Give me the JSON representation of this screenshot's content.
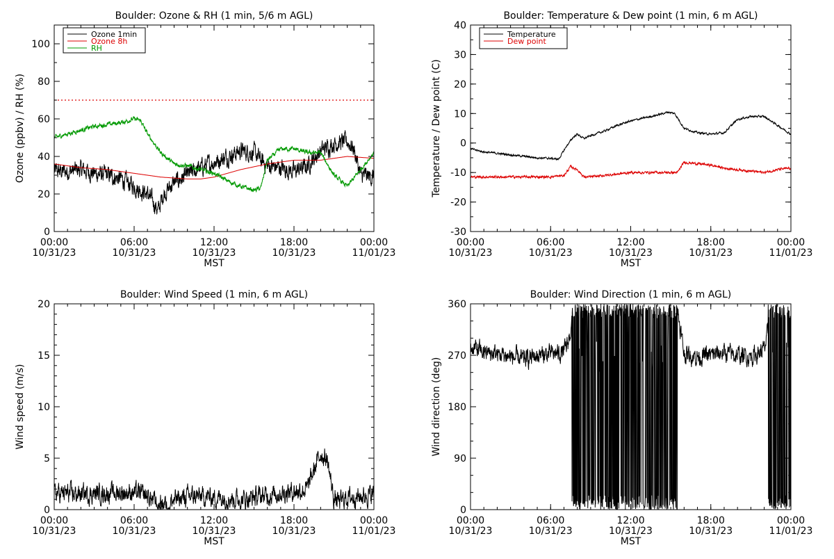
{
  "chart_data": [
    {
      "type": "line",
      "title": "Boulder: Ozone & RH (1 min, 5/6 m AGL)",
      "xlabel": "MST",
      "ylabel": "Ozone (ppbv) / RH (%)",
      "x_ticks": [
        {
          "time": "00:00",
          "date": "10/31/23"
        },
        {
          "time": "06:00",
          "date": "10/31/23"
        },
        {
          "time": "12:00",
          "date": "10/31/23"
        },
        {
          "time": "18:00",
          "date": "10/31/23"
        },
        {
          "time": "00:00",
          "date": "11/01/23"
        }
      ],
      "xlim_hours": [
        0,
        24
      ],
      "ylim": [
        0,
        110
      ],
      "yticks": [
        0,
        20,
        40,
        60,
        80,
        100
      ],
      "legend_position": "top-left",
      "reference_line": {
        "y": 70,
        "color": "#dd0000",
        "style": "dotted"
      },
      "series": [
        {
          "name": "Ozone 1min",
          "color": "#000000",
          "noise": 3.5,
          "hours": [
            0,
            1,
            2,
            3,
            4,
            5,
            6,
            6.5,
            7,
            7.5,
            7.8,
            8.2,
            9,
            10,
            11,
            12,
            13,
            14,
            15,
            15.5,
            16,
            17,
            18,
            19,
            20,
            21,
            22,
            22.5,
            23,
            24
          ],
          "values": [
            32,
            32,
            33,
            31,
            30,
            28,
            24,
            22,
            20,
            15,
            11,
            20,
            26,
            30,
            34,
            37,
            40,
            43,
            42,
            38,
            35,
            34,
            32,
            35,
            43,
            47,
            48,
            44,
            30,
            29
          ]
        },
        {
          "name": "Ozone 8h",
          "color": "#dd0000",
          "noise": 0,
          "hours": [
            0,
            2,
            4,
            6,
            8,
            10,
            11,
            12,
            14,
            16,
            18,
            20,
            22,
            24
          ],
          "values": [
            36,
            34,
            33,
            31,
            29,
            28,
            28,
            29,
            33,
            36,
            38,
            38,
            40,
            39
          ]
        },
        {
          "name": "RH",
          "color": "#009900",
          "noise": 0.9,
          "hours": [
            0,
            1,
            2,
            3,
            4,
            5,
            6,
            6.5,
            7,
            8,
            9,
            10,
            12,
            13,
            14,
            15,
            15.5,
            16,
            17,
            18,
            19,
            20,
            21,
            22,
            23,
            24
          ],
          "values": [
            50,
            52,
            54,
            56,
            57,
            58,
            60,
            59,
            52,
            42,
            36,
            35,
            31,
            27,
            24,
            22,
            23,
            38,
            44,
            44,
            42,
            42,
            30,
            24,
            33,
            42
          ]
        }
      ]
    },
    {
      "type": "line",
      "title": "Boulder: Temperature & Dew point (1 min, 6 m AGL)",
      "xlabel": "MST",
      "ylabel": "Temperature / Dew point (C)",
      "x_ticks": [
        {
          "time": "00:00",
          "date": "10/31/23"
        },
        {
          "time": "06:00",
          "date": "10/31/23"
        },
        {
          "time": "12:00",
          "date": "10/31/23"
        },
        {
          "time": "18:00",
          "date": "10/31/23"
        },
        {
          "time": "00:00",
          "date": "11/01/23"
        }
      ],
      "xlim_hours": [
        0,
        24
      ],
      "ylim": [
        -30,
        40
      ],
      "yticks": [
        -30,
        -20,
        -10,
        0,
        10,
        20,
        30,
        40
      ],
      "legend_position": "top-left",
      "series": [
        {
          "name": "Temperature",
          "color": "#000000",
          "noise": 0.25,
          "hours": [
            0,
            1,
            2,
            3,
            4,
            5,
            6,
            6.6,
            7.2,
            7.7,
            8,
            8.5,
            9,
            10,
            11,
            12,
            13,
            14,
            14.8,
            15.3,
            16,
            17,
            18,
            19,
            20,
            21,
            22,
            23,
            24
          ],
          "values": [
            -2,
            -3,
            -3.5,
            -4,
            -4.5,
            -5,
            -5.2,
            -5.5,
            -1,
            2,
            3,
            1.5,
            2.5,
            4,
            6,
            7.5,
            8.5,
            9.5,
            10.5,
            10,
            5,
            3.5,
            3,
            3.5,
            8,
            9,
            9,
            6,
            3
          ]
        },
        {
          "name": "Dew point",
          "color": "#dd0000",
          "noise": 0.3,
          "hours": [
            0,
            1,
            2,
            3,
            4,
            5,
            6,
            7,
            7.5,
            8,
            8.5,
            9,
            10,
            11,
            12,
            13,
            14,
            15,
            15.5,
            16,
            17,
            18,
            19,
            20,
            21,
            22,
            23,
            24
          ],
          "values": [
            -11.5,
            -11.5,
            -11.5,
            -11.5,
            -11.5,
            -11.5,
            -11.5,
            -11,
            -8,
            -9,
            -11.5,
            -11.5,
            -11,
            -10.5,
            -10,
            -10,
            -10,
            -10,
            -10,
            -6.5,
            -7,
            -7.5,
            -8.5,
            -9,
            -9.5,
            -10,
            -9,
            -8.5
          ]
        }
      ]
    },
    {
      "type": "line",
      "title": "Boulder: Wind Speed (1 min, 6 m AGL)",
      "xlabel": "MST",
      "ylabel": "Wind speed (m/s)",
      "x_ticks": [
        {
          "time": "00:00",
          "date": "10/31/23"
        },
        {
          "time": "06:00",
          "date": "10/31/23"
        },
        {
          "time": "12:00",
          "date": "10/31/23"
        },
        {
          "time": "18:00",
          "date": "10/31/23"
        },
        {
          "time": "00:00",
          "date": "11/01/23"
        }
      ],
      "xlim_hours": [
        0,
        24
      ],
      "ylim": [
        0,
        20
      ],
      "yticks": [
        0,
        5,
        10,
        15,
        20
      ],
      "series": [
        {
          "color": "#000000",
          "noise": 0.7,
          "floor": 0,
          "hours": [
            0,
            2,
            4,
            6,
            7,
            8,
            9,
            10,
            12,
            14,
            16,
            18,
            19,
            19.5,
            20,
            20.5,
            21,
            21.5,
            22,
            23,
            24
          ],
          "values": [
            1.6,
            1.5,
            1.6,
            1.7,
            1.3,
            0.4,
            0.9,
            1.3,
            1.2,
            1.0,
            1.4,
            1.8,
            2.0,
            3.8,
            5.5,
            4.8,
            1.0,
            0.8,
            1.2,
            1.3,
            1.5
          ]
        }
      ]
    },
    {
      "type": "line",
      "title": "Boulder: Wind Direction (1 min, 6 m AGL)",
      "xlabel": "MST",
      "ylabel": "Wind direction (deg)",
      "x_ticks": [
        {
          "time": "00:00",
          "date": "10/31/23"
        },
        {
          "time": "06:00",
          "date": "10/31/23"
        },
        {
          "time": "12:00",
          "date": "10/31/23"
        },
        {
          "time": "18:00",
          "date": "10/31/23"
        },
        {
          "time": "00:00",
          "date": "11/01/23"
        }
      ],
      "xlim_hours": [
        0,
        24
      ],
      "ylim": [
        0,
        360
      ],
      "yticks": [
        0,
        90,
        180,
        270,
        360
      ],
      "series": [
        {
          "color": "#000000",
          "noise": 12,
          "wrap": [
            0,
            360
          ],
          "hours": [
            0,
            1,
            2,
            3,
            4,
            5,
            6,
            7,
            7.3,
            7.8,
            8.5,
            10,
            12,
            14,
            15.5,
            16,
            17,
            18,
            19,
            20,
            21,
            22,
            22.5,
            23,
            24
          ],
          "values": [
            285,
            275,
            272,
            268,
            262,
            270,
            272,
            275,
            290,
            350,
            5,
            355,
            5,
            0,
            350,
            272,
            268,
            270,
            275,
            270,
            268,
            280,
            330,
            320,
            290
          ],
          "jumpy_hours": [
            [
              7.6,
              15.5
            ],
            [
              22.3,
              24
            ]
          ]
        }
      ]
    }
  ]
}
